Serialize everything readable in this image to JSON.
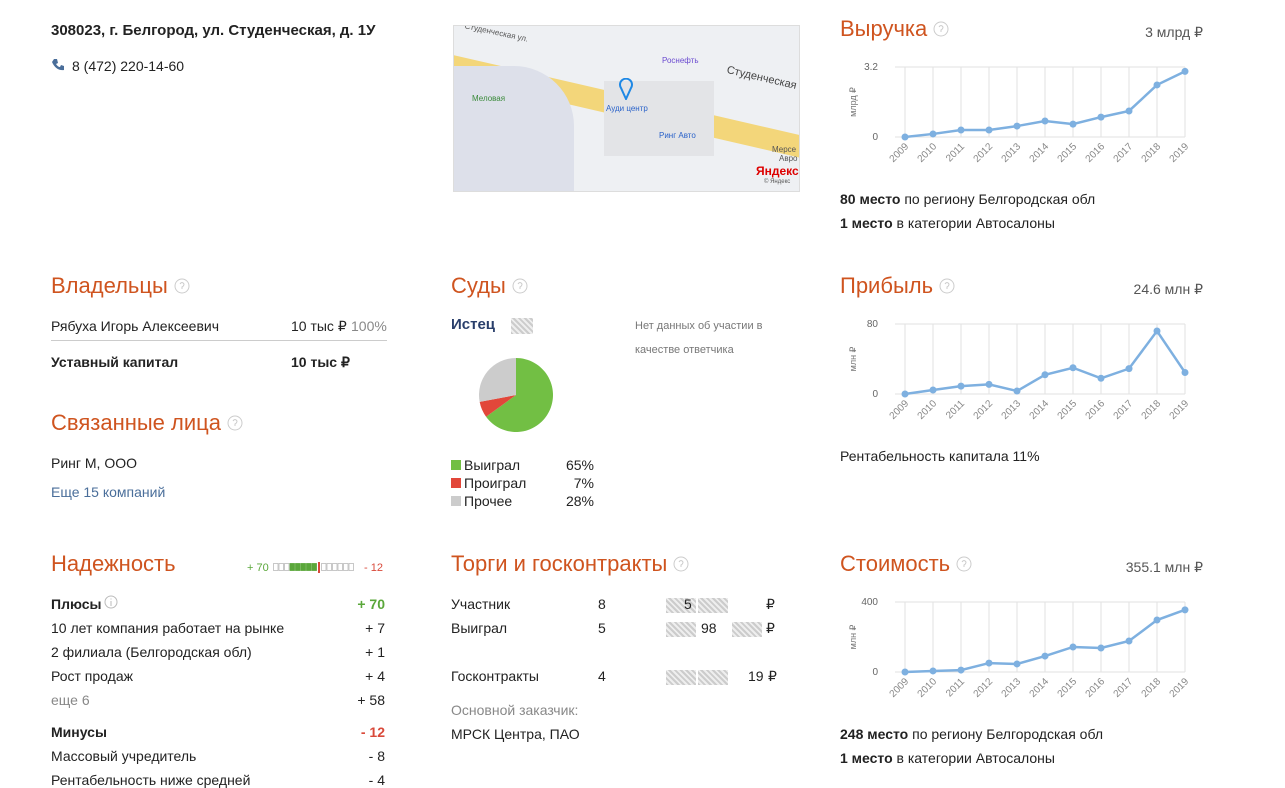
{
  "company": {
    "address": "308023, г. Белгород, ул. Студенческая, д. 1У",
    "phone": "8 (472) 220-14-60"
  },
  "map": {
    "labels": [
      "Студенческая ул.",
      "Роснефть",
      "Меловая",
      "Ауди центр",
      "Ринг Авто",
      "Студенческая",
      "Мерсе",
      "Авро",
      "Яндекс",
      "© Яндекс"
    ]
  },
  "chart_data": [
    {
      "type": "line",
      "title": "Выручка",
      "total": "3 млрд ₽",
      "ylabel": "млрд ₽",
      "color": "#7eb0e0",
      "categories": [
        "2009",
        "2010",
        "2011",
        "2012",
        "2013",
        "2014",
        "2015",
        "2016",
        "2017",
        "2018",
        "2019"
      ],
      "values": [
        0,
        0.14,
        0.32,
        0.32,
        0.5,
        0.73,
        0.59,
        0.91,
        1.19,
        2.38,
        3.0
      ],
      "ylim": [
        0,
        3.2
      ],
      "yticks": [
        0,
        3.2
      ],
      "grid": true
    },
    {
      "type": "line",
      "title": "Прибыль",
      "total": "24.6 млн ₽",
      "ylabel": "млн ₽",
      "color": "#7eb0e0",
      "categories": [
        "2009",
        "2010",
        "2011",
        "2012",
        "2013",
        "2014",
        "2015",
        "2016",
        "2017",
        "2018",
        "2019"
      ],
      "values": [
        0,
        4.6,
        9,
        11,
        3.4,
        22,
        30,
        18,
        29,
        72,
        24.6
      ],
      "ylim": [
        0,
        80
      ],
      "yticks": [
        0,
        80
      ],
      "grid": true
    },
    {
      "type": "line",
      "title": "Стоимость",
      "total": "355.1 млн ₽",
      "ylabel": "млн ₽",
      "color": "#7eb0e0",
      "categories": [
        "2009",
        "2010",
        "2011",
        "2012",
        "2013",
        "2014",
        "2015",
        "2016",
        "2017",
        "2018",
        "2019"
      ],
      "values": [
        0,
        6,
        11,
        51,
        46,
        91,
        143,
        137,
        177,
        297,
        355.1
      ],
      "ylim": [
        0,
        400
      ],
      "yticks": [
        0,
        400
      ],
      "grid": true
    },
    {
      "type": "pie",
      "title": "Суды",
      "subtitle": "Истец",
      "note": "Нет данных об участии в качестве ответчика",
      "categories": [
        "Выиграл",
        "Проиграл",
        "Прочее"
      ],
      "values": [
        65,
        7,
        28
      ],
      "value_labels": [
        "65%",
        "7%",
        "28%"
      ],
      "colors": [
        "#72bf44",
        "#e2473a",
        "#cccccc"
      ]
    }
  ],
  "revenue_ranks": [
    {
      "place": "80 место",
      "text": "по региону Белгородская обл"
    },
    {
      "place": "1 место",
      "text": "в категории Автосалоны"
    }
  ],
  "profit_note": "Рентабельность капитала 11%",
  "value_ranks": [
    {
      "place": "248 место",
      "text": "по региону Белгородская обл"
    },
    {
      "place": "1 место",
      "text": "в категории Автосалоны"
    }
  ],
  "owners": {
    "title": "Владельцы",
    "rows": [
      {
        "name": "Рябуха Игорь Алексеевич",
        "amount": "10 тыс ₽",
        "share": "100%"
      }
    ],
    "capital": {
      "label": "Уставный капитал",
      "value": "10 тыс ₽"
    }
  },
  "related": {
    "title": "Связанные лица",
    "items": [
      "Ринг М, ООО"
    ],
    "more": "Еще 15 компаний"
  },
  "reliability": {
    "title": "Надежность",
    "plus": {
      "label": "Плюсы",
      "value": "+ 70",
      "items": [
        {
          "label": "10 лет компания работает на рынке",
          "value": "+ 7"
        },
        {
          "label": "2 филиала (Белгородская обл)",
          "value": "+ 1"
        },
        {
          "label": "Рост продаж",
          "value": "+ 4"
        },
        {
          "label": "еще 6",
          "value": "+ 58"
        }
      ]
    },
    "minus": {
      "label": "Минусы",
      "value": "- 12",
      "items": [
        {
          "label": "Массовый учредитель",
          "value": "- 8"
        },
        {
          "label": "Рентабельность ниже средней",
          "value": "- 4"
        }
      ]
    }
  },
  "tenders": {
    "title": "Торги и госконтракты",
    "rows": [
      {
        "label": "Участник",
        "count": "8",
        "amount": "5",
        "currency": "₽"
      },
      {
        "label": "Выиграл",
        "count": "5",
        "amount": "98",
        "currency": "₽"
      },
      {
        "label": "Госконтракты",
        "count": "4",
        "amount": "19",
        "currency": "₽"
      }
    ],
    "customer_label": "Основной заказчик:",
    "customer": "МРСК Центра, ПАО"
  }
}
